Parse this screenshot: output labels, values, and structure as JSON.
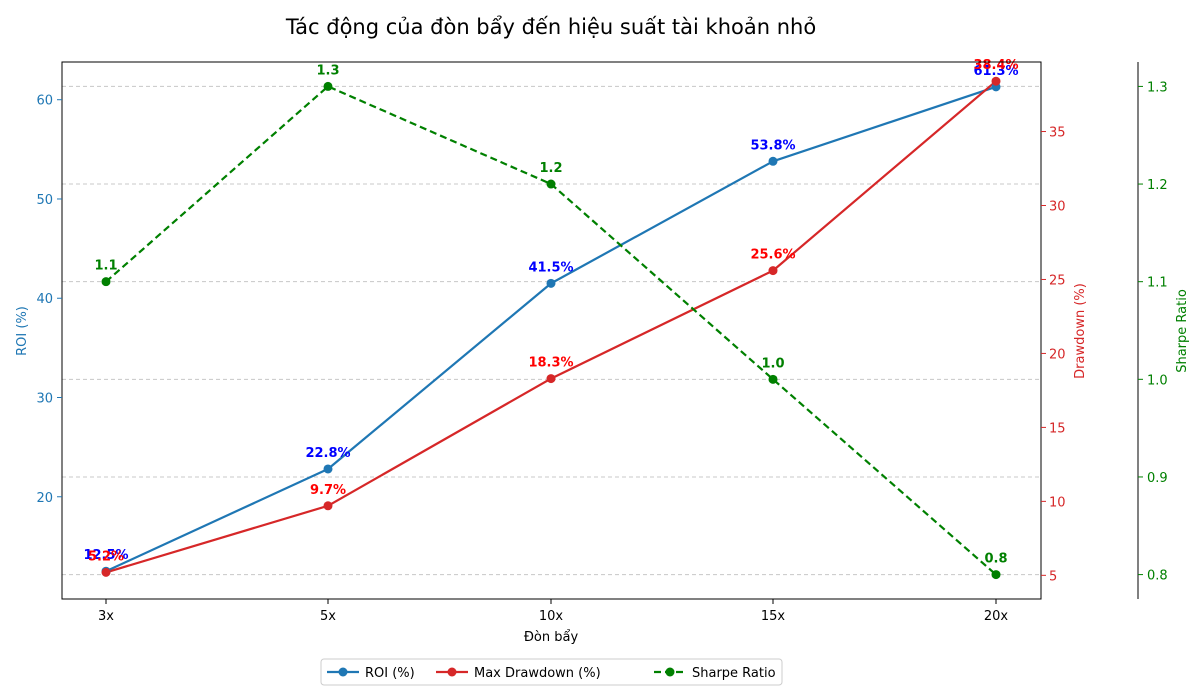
{
  "chart_data": {
    "type": "line",
    "title": "Tác động của đòn bẩy đến hiệu suất tài khoản nhỏ",
    "xlabel": "Đòn bẩy",
    "categories": [
      "3x",
      "5x",
      "10x",
      "15x",
      "20x"
    ],
    "axes": {
      "roi": {
        "label": "ROI (%)",
        "ticks": [
          "20",
          "30",
          "40",
          "50",
          "60"
        ],
        "range": [
          9.7,
          63.8
        ],
        "color": "#1f77b4"
      },
      "drawdown": {
        "label": "Drawdown (%)",
        "ticks": [
          "5",
          "10",
          "15",
          "20",
          "25",
          "30",
          "35"
        ],
        "range": [
          3.4,
          39.7
        ],
        "color": "#d62728"
      },
      "sharpe": {
        "label": "Sharpe Ratio",
        "ticks": [
          "0.8",
          "0.9",
          "1.0",
          "1.1",
          "1.2",
          "1.3"
        ],
        "range": [
          0.775,
          1.325
        ],
        "color": "#008000"
      }
    },
    "grid": "horizontal-dashed",
    "legend_position": "bottom-center",
    "series": [
      {
        "name": "ROI (%)",
        "axis": "roi",
        "values": [
          12.5,
          22.8,
          41.5,
          53.8,
          61.3
        ],
        "labels": [
          "12.5%",
          "22.8%",
          "41.5%",
          "53.8%",
          "61.3%"
        ],
        "line_color": "#1f77b4",
        "label_color": "#0000ff",
        "dashed": false
      },
      {
        "name": "Max Drawdown (%)",
        "axis": "drawdown",
        "values": [
          5.2,
          9.7,
          18.3,
          25.6,
          38.4
        ],
        "labels": [
          "5.2%",
          "9.7%",
          "18.3%",
          "25.6%",
          "38.4%"
        ],
        "line_color": "#d62728",
        "label_color": "#ff0000",
        "dashed": false
      },
      {
        "name": "Sharpe Ratio",
        "axis": "sharpe",
        "values": [
          1.1,
          1.3,
          1.2,
          1.0,
          0.8
        ],
        "labels": [
          "1.1",
          "1.3",
          "1.2",
          "1.0",
          "0.8"
        ],
        "line_color": "#008000",
        "label_color": "#008000",
        "dashed": true
      }
    ]
  }
}
